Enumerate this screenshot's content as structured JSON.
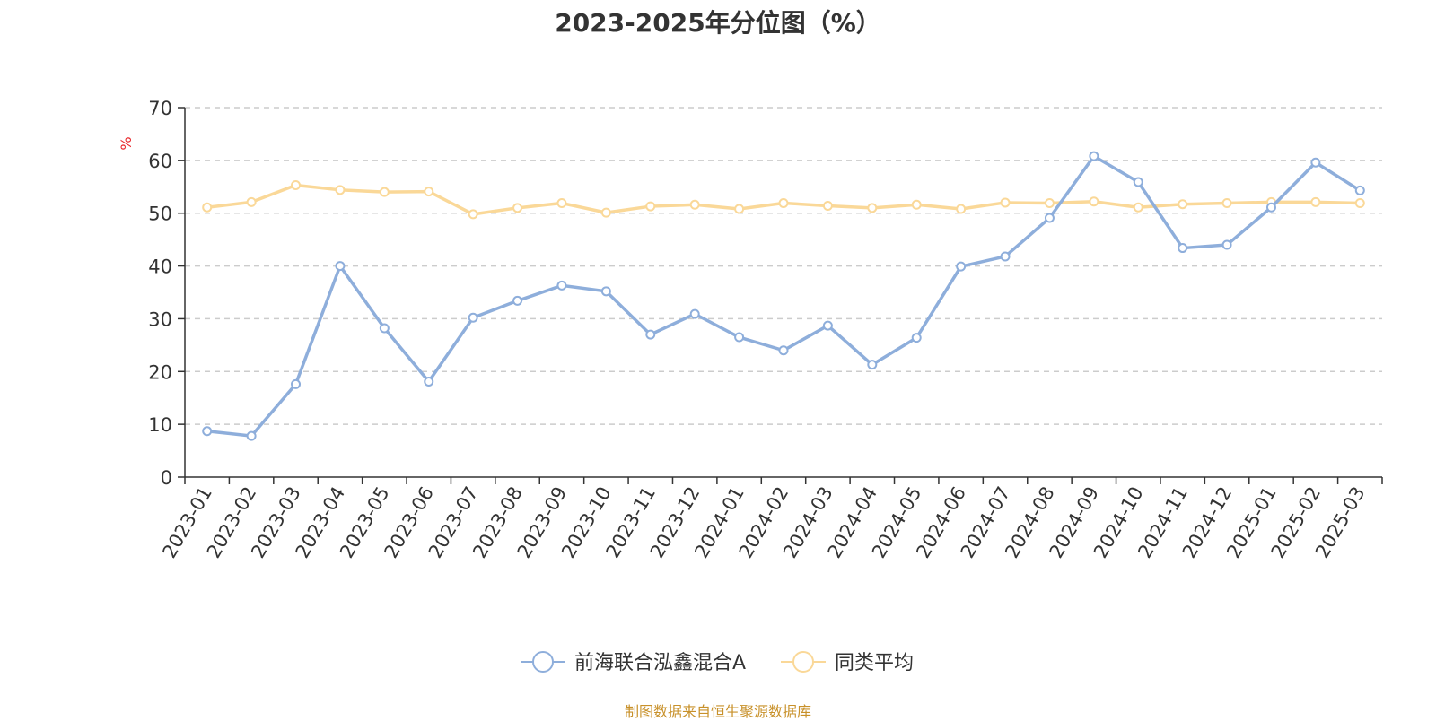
{
  "chart_data": {
    "type": "line",
    "title": "2023-2025年分位图（%）",
    "ylabel": "%",
    "xlabel": "",
    "ylim": [
      0,
      70
    ],
    "yticks": [
      0,
      10,
      20,
      30,
      40,
      50,
      60,
      70
    ],
    "grid": true,
    "legend_position": "bottom",
    "categories": [
      "2023-01",
      "2023-02",
      "2023-03",
      "2023-04",
      "2023-05",
      "2023-06",
      "2023-07",
      "2023-08",
      "2023-09",
      "2023-10",
      "2023-11",
      "2023-12",
      "2024-01",
      "2024-02",
      "2024-03",
      "2024-04",
      "2024-05",
      "2024-06",
      "2024-07",
      "2024-08",
      "2024-09",
      "2024-10",
      "2024-11",
      "2024-12",
      "2025-01",
      "2025-02",
      "2025-03"
    ],
    "series": [
      {
        "name": "前海联合泓鑫混合A",
        "color": "#8eaedb",
        "values": [
          8.7,
          7.8,
          17.6,
          40.0,
          28.2,
          18.1,
          30.2,
          33.4,
          36.3,
          35.2,
          27.0,
          30.9,
          26.5,
          24.0,
          28.7,
          21.3,
          26.4,
          39.9,
          41.8,
          49.1,
          60.8,
          55.9,
          43.4,
          44.0,
          51.1,
          59.6,
          54.3
        ]
      },
      {
        "name": "同类平均",
        "color": "#fad898",
        "values": [
          51.1,
          52.1,
          55.3,
          54.4,
          54.0,
          54.1,
          49.8,
          51.0,
          51.9,
          50.1,
          51.3,
          51.6,
          50.8,
          51.9,
          51.4,
          51.0,
          51.6,
          50.8,
          52.0,
          51.9,
          52.2,
          51.1,
          51.7,
          51.9,
          52.1,
          52.1,
          51.9
        ]
      }
    ],
    "source_note": "制图数据来自恒生聚源数据库",
    "colors": {
      "axis": "#333333",
      "grid": "#cccccc",
      "ylabel": "#e8262a",
      "source_note": "#c8912a"
    }
  }
}
